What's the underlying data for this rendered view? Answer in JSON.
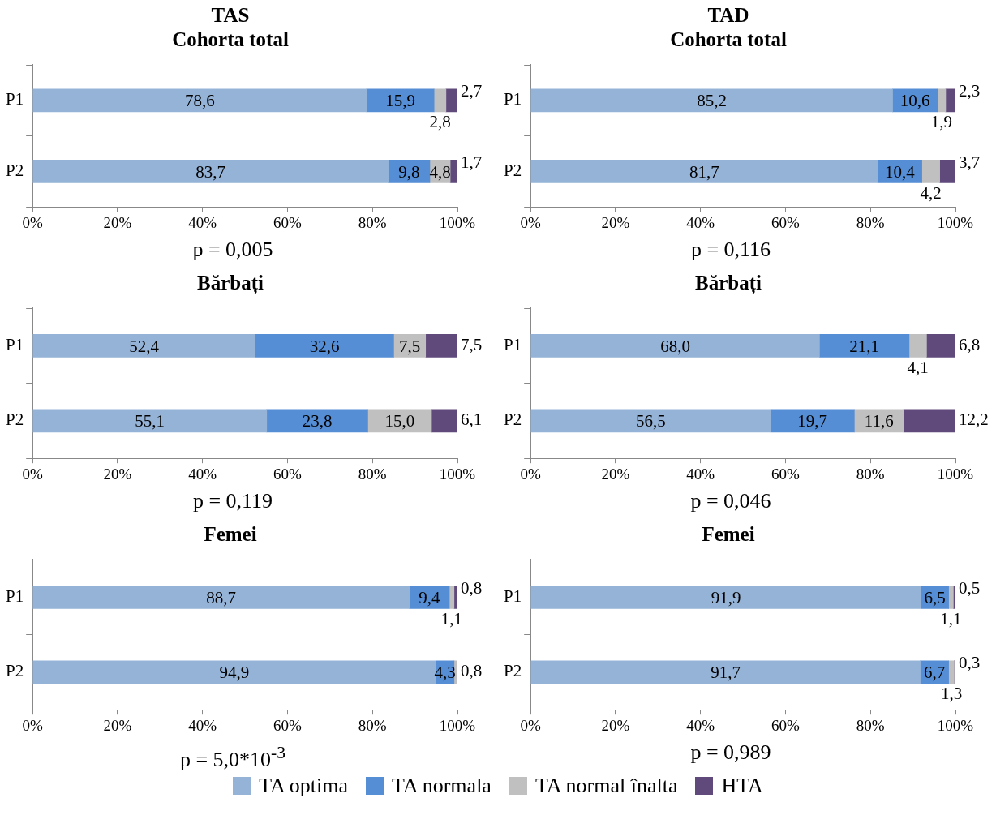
{
  "chart_data": [
    {
      "type": "bar",
      "orientation": "horizontal",
      "stacked": true,
      "title": "TAS\nCohorta total",
      "categories": [
        "P1",
        "P2"
      ],
      "xlim": [
        0,
        100
      ],
      "xticks": [
        {
          "value": 0,
          "label": "0%"
        },
        {
          "value": 20,
          "label": "20%"
        },
        {
          "value": 40,
          "label": "40%"
        },
        {
          "value": 60,
          "label": "60%"
        },
        {
          "value": 80,
          "label": "80%"
        },
        {
          "value": 100,
          "label": "100%"
        }
      ],
      "grid": false,
      "legend": "bottom",
      "annotations": [
        "p = 0,005"
      ],
      "series": [
        {
          "name": "TA optima",
          "color": "#95b3d7",
          "values": [
            78.6,
            83.7
          ],
          "value_labels": [
            "78,6",
            "83,7"
          ]
        },
        {
          "name": "TA normala",
          "color": "#558ed5",
          "values": [
            15.9,
            9.8
          ],
          "value_labels": [
            "15,9",
            "9,8"
          ]
        },
        {
          "name": "TA normal înalta",
          "color": "#c0c0c0",
          "values": [
            2.8,
            4.8
          ],
          "value_labels": [
            "2,8",
            "4,8"
          ]
        },
        {
          "name": "HTA",
          "color": "#604a7b",
          "values": [
            2.7,
            1.7
          ],
          "value_labels": [
            "2,7",
            "1,7"
          ]
        }
      ]
    },
    {
      "type": "bar",
      "orientation": "horizontal",
      "stacked": true,
      "title": "TAD\nCohorta total",
      "categories": [
        "P1",
        "P2"
      ],
      "xlim": [
        0,
        100
      ],
      "xticks": [
        {
          "value": 0,
          "label": "0%"
        },
        {
          "value": 20,
          "label": "20%"
        },
        {
          "value": 40,
          "label": "40%"
        },
        {
          "value": 60,
          "label": "60%"
        },
        {
          "value": 80,
          "label": "80%"
        },
        {
          "value": 100,
          "label": "100%"
        }
      ],
      "grid": false,
      "annotations": [
        "p = 0,116"
      ],
      "series": [
        {
          "color": "#95b3d7",
          "values": [
            85.2,
            81.7
          ],
          "value_labels": [
            "85,2",
            "81,7"
          ]
        },
        {
          "color": "#558ed5",
          "values": [
            10.6,
            10.4
          ],
          "value_labels": [
            "10,6",
            "10,4"
          ]
        },
        {
          "color": "#c0c0c0",
          "values": [
            1.9,
            4.2
          ],
          "value_labels": [
            "1,9",
            "4,2"
          ]
        },
        {
          "color": "#604a7b",
          "values": [
            2.3,
            3.7
          ],
          "value_labels": [
            "2,3",
            "3,7"
          ]
        }
      ]
    },
    {
      "type": "bar",
      "orientation": "horizontal",
      "stacked": true,
      "title": "Bărbați",
      "categories": [
        "P1",
        "P2"
      ],
      "xlim": [
        0,
        100
      ],
      "xticks": [
        {
          "value": 0,
          "label": "0%"
        },
        {
          "value": 20,
          "label": "20%"
        },
        {
          "value": 40,
          "label": "40%"
        },
        {
          "value": 60,
          "label": "60%"
        },
        {
          "value": 80,
          "label": "80%"
        },
        {
          "value": 100,
          "label": "100%"
        }
      ],
      "grid": false,
      "annotations": [
        "p = 0,119"
      ],
      "series": [
        {
          "color": "#95b3d7",
          "values": [
            52.4,
            55.1
          ],
          "value_labels": [
            "52,4",
            "55,1"
          ]
        },
        {
          "color": "#558ed5",
          "values": [
            32.6,
            23.8
          ],
          "value_labels": [
            "32,6",
            "23,8"
          ]
        },
        {
          "color": "#c0c0c0",
          "values": [
            7.5,
            15.0
          ],
          "value_labels": [
            "7,5",
            "15,0"
          ]
        },
        {
          "color": "#604a7b",
          "values": [
            7.5,
            6.1
          ],
          "value_labels": [
            "7,5",
            "6,1"
          ]
        }
      ]
    },
    {
      "type": "bar",
      "orientation": "horizontal",
      "stacked": true,
      "title": "Bărbați",
      "categories": [
        "P1",
        "P2"
      ],
      "xlim": [
        0,
        100
      ],
      "xticks": [
        {
          "value": 0,
          "label": "0%"
        },
        {
          "value": 20,
          "label": "20%"
        },
        {
          "value": 40,
          "label": "40%"
        },
        {
          "value": 60,
          "label": "60%"
        },
        {
          "value": 80,
          "label": "80%"
        },
        {
          "value": 100,
          "label": "100%"
        }
      ],
      "grid": false,
      "annotations": [
        "p = 0,046"
      ],
      "series": [
        {
          "color": "#95b3d7",
          "values": [
            68.0,
            56.5
          ],
          "value_labels": [
            "68,0",
            "56,5"
          ]
        },
        {
          "color": "#558ed5",
          "values": [
            21.1,
            19.7
          ],
          "value_labels": [
            "21,1",
            "19,7"
          ]
        },
        {
          "color": "#c0c0c0",
          "values": [
            4.1,
            11.6
          ],
          "value_labels": [
            "4,1",
            "11,6"
          ]
        },
        {
          "color": "#604a7b",
          "values": [
            6.8,
            12.2
          ],
          "value_labels": [
            "6,8",
            "12,2"
          ]
        }
      ]
    },
    {
      "type": "bar",
      "orientation": "horizontal",
      "stacked": true,
      "title": "Femei",
      "categories": [
        "P1",
        "P2"
      ],
      "xlim": [
        0,
        100
      ],
      "xticks": [
        {
          "value": 0,
          "label": "0%"
        },
        {
          "value": 20,
          "label": "20%"
        },
        {
          "value": 40,
          "label": "40%"
        },
        {
          "value": 60,
          "label": "60%"
        },
        {
          "value": 80,
          "label": "80%"
        },
        {
          "value": 100,
          "label": "100%"
        }
      ],
      "grid": false,
      "annotations": [
        "p = 5,0*10$^{-3}$"
      ],
      "series": [
        {
          "color": "#95b3d7",
          "values": [
            88.7,
            94.9
          ],
          "value_labels": [
            "88,7",
            "94,9"
          ]
        },
        {
          "color": "#558ed5",
          "values": [
            9.4,
            4.3
          ],
          "value_labels": [
            "9,4",
            "4,3"
          ]
        },
        {
          "color": "#c0c0c0",
          "values": [
            1.1,
            0.8
          ],
          "value_labels": [
            "1,1",
            "0,8"
          ]
        },
        {
          "color": "#604a7b",
          "values": [
            0.8,
            0
          ],
          "value_labels": [
            "0,8",
            null
          ]
        }
      ]
    },
    {
      "type": "bar",
      "orientation": "horizontal",
      "stacked": true,
      "title": "Femei",
      "categories": [
        "P1",
        "P2"
      ],
      "xlim": [
        0,
        100
      ],
      "xticks": [
        {
          "value": 0,
          "label": "0%"
        },
        {
          "value": 20,
          "label": "20%"
        },
        {
          "value": 40,
          "label": "40%"
        },
        {
          "value": 60,
          "label": "60%"
        },
        {
          "value": 80,
          "label": "80%"
        },
        {
          "value": 100,
          "label": "100%"
        }
      ],
      "grid": false,
      "annotations": [
        "p = 0,989"
      ],
      "series": [
        {
          "color": "#95b3d7",
          "values": [
            91.9,
            91.7
          ],
          "value_labels": [
            "91,9",
            "91,7"
          ]
        },
        {
          "color": "#558ed5",
          "values": [
            6.5,
            6.7
          ],
          "value_labels": [
            "6,5",
            "6,7"
          ]
        },
        {
          "color": "#c0c0c0",
          "values": [
            1.1,
            1.3
          ],
          "value_labels": [
            "1,1",
            "1,3"
          ]
        },
        {
          "color": "#604a7b",
          "values": [
            0.5,
            0.3
          ],
          "value_labels": [
            "0,5",
            "0,3"
          ]
        }
      ]
    }
  ]
}
